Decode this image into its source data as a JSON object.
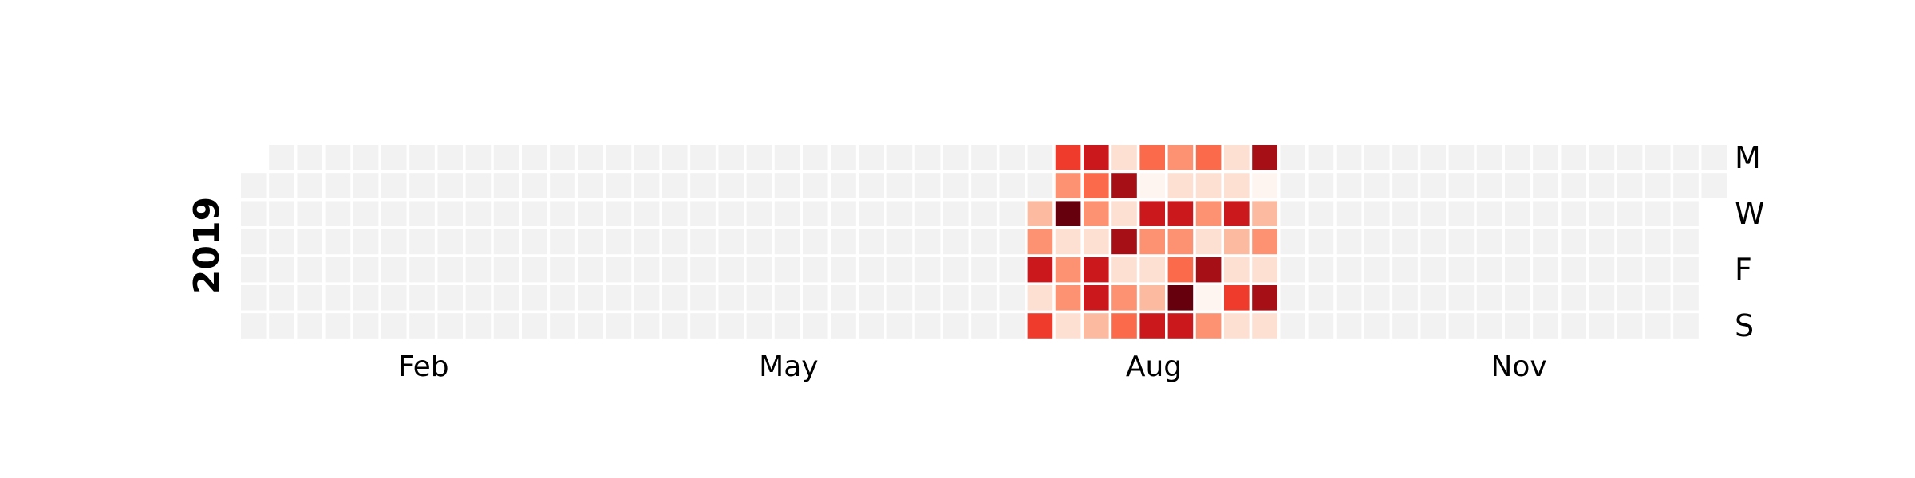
{
  "chart_data": {
    "type": "heatmap",
    "year": "2019",
    "year_start_weekday": "Tuesday",
    "empty_color": "#f2f2f2",
    "colormap": "Reds",
    "month_labels": [
      {
        "label": "Feb",
        "week": 6.5
      },
      {
        "label": "May",
        "week": 19.5
      },
      {
        "label": "Aug",
        "week": 32.5
      },
      {
        "label": "Nov",
        "week": 45.5
      }
    ],
    "day_labels": [
      {
        "label": "M",
        "row": 0
      },
      {
        "label": "W",
        "row": 2
      },
      {
        "label": "F",
        "row": 4
      },
      {
        "label": "S",
        "row": 6
      }
    ],
    "value_range": [
      0,
      8
    ],
    "values_by_week": [
      {
        "week": 28,
        "values": [
          null,
          null,
          2,
          3,
          6,
          1,
          5
        ]
      },
      {
        "week": 29,
        "values": [
          5,
          3,
          8,
          1,
          3,
          3,
          1
        ]
      },
      {
        "week": 30,
        "values": [
          6,
          4,
          3,
          1,
          6,
          6,
          2
        ]
      },
      {
        "week": 31,
        "values": [
          1,
          7,
          1,
          7,
          1,
          3,
          4
        ]
      },
      {
        "week": 32,
        "values": [
          4,
          0,
          6,
          3,
          1,
          2,
          6
        ]
      },
      {
        "week": 33,
        "values": [
          3,
          1,
          6,
          3,
          4,
          8,
          6
        ]
      },
      {
        "week": 34,
        "values": [
          4,
          1,
          3,
          1,
          7,
          0,
          3
        ]
      },
      {
        "week": 35,
        "values": [
          1,
          1,
          6,
          2,
          1,
          5,
          1
        ]
      },
      {
        "week": 36,
        "values": [
          7,
          0,
          2,
          3,
          1,
          7,
          1
        ]
      }
    ]
  }
}
